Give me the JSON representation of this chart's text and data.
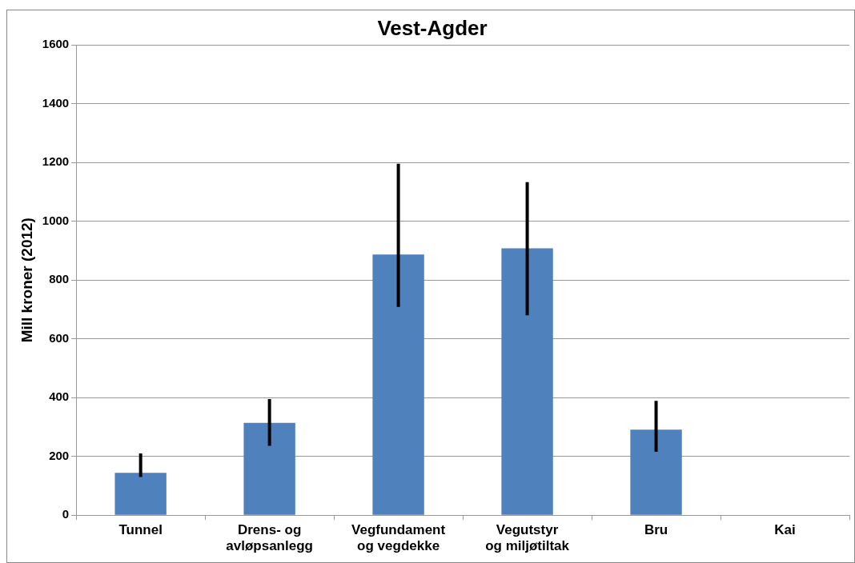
{
  "chart_data": {
    "type": "bar",
    "title": "Vest-Agder",
    "ylabel": "Mill kroner (2012)",
    "categories": [
      [
        "Tunnel"
      ],
      [
        "Drens- og",
        "avløpsanlegg"
      ],
      [
        "Vegfundament",
        "og vegdekke"
      ],
      [
        "Vegutstyr",
        "og miljøtiltak"
      ],
      [
        "Bru"
      ],
      [
        "Kai"
      ]
    ],
    "values": [
      144,
      314,
      887,
      908,
      291,
      0
    ],
    "errors": [
      [
        130,
        210
      ],
      [
        236,
        395
      ],
      [
        709,
        1196
      ],
      [
        680,
        1133
      ],
      [
        216,
        389
      ],
      null
    ],
    "color": "#4f81bd",
    "ylim": [
      0,
      1600
    ],
    "yticks": [
      0,
      200,
      400,
      600,
      800,
      1000,
      1200,
      1400,
      1600
    ],
    "grid": "y",
    "legend": false
  }
}
